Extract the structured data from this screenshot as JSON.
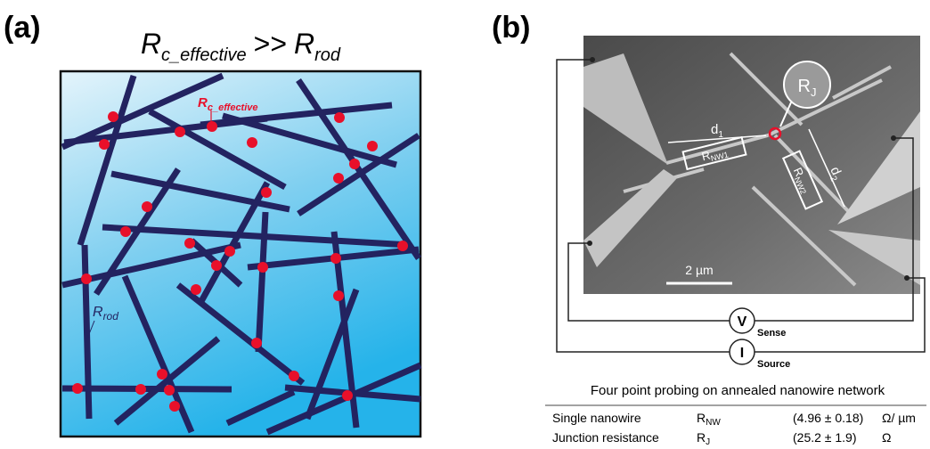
{
  "panel_a": {
    "label": "(a)",
    "title": {
      "left": {
        "main": "R",
        "sub": "c_effective"
      },
      "relation": ">>",
      "right": {
        "main": "R",
        "sub": "rod"
      }
    },
    "junction_label": {
      "main": "R",
      "sub": "c_effective"
    },
    "rod_label": {
      "main": "R",
      "sub": "rod"
    }
  },
  "panel_b": {
    "label": "(b)",
    "junction": {
      "main": "R",
      "sub": "J"
    },
    "d1": {
      "main": "d",
      "sub": "1"
    },
    "d2": {
      "main": "d",
      "sub": "2"
    },
    "rnw1": {
      "main": "R",
      "sub": "NW1"
    },
    "rnw2": {
      "main": "R",
      "sub": "NW2"
    },
    "scale_bar": "2 µm",
    "voltmeter": "V",
    "sense": "Sense",
    "ammeter": "I",
    "source": "Source"
  },
  "table": {
    "caption": "Four point probing on annealed nanowire network",
    "rows": [
      {
        "name": "Single nanowire",
        "symbol": {
          "main": "R",
          "sub": "NW"
        },
        "value": "(4.96 ± 0.18)",
        "unit": "Ω/ µm"
      },
      {
        "name": "Junction resistance",
        "symbol": {
          "main": "R",
          "sub": "J"
        },
        "value": "(25.2 ± 1.9)",
        "unit": "Ω"
      }
    ]
  }
}
